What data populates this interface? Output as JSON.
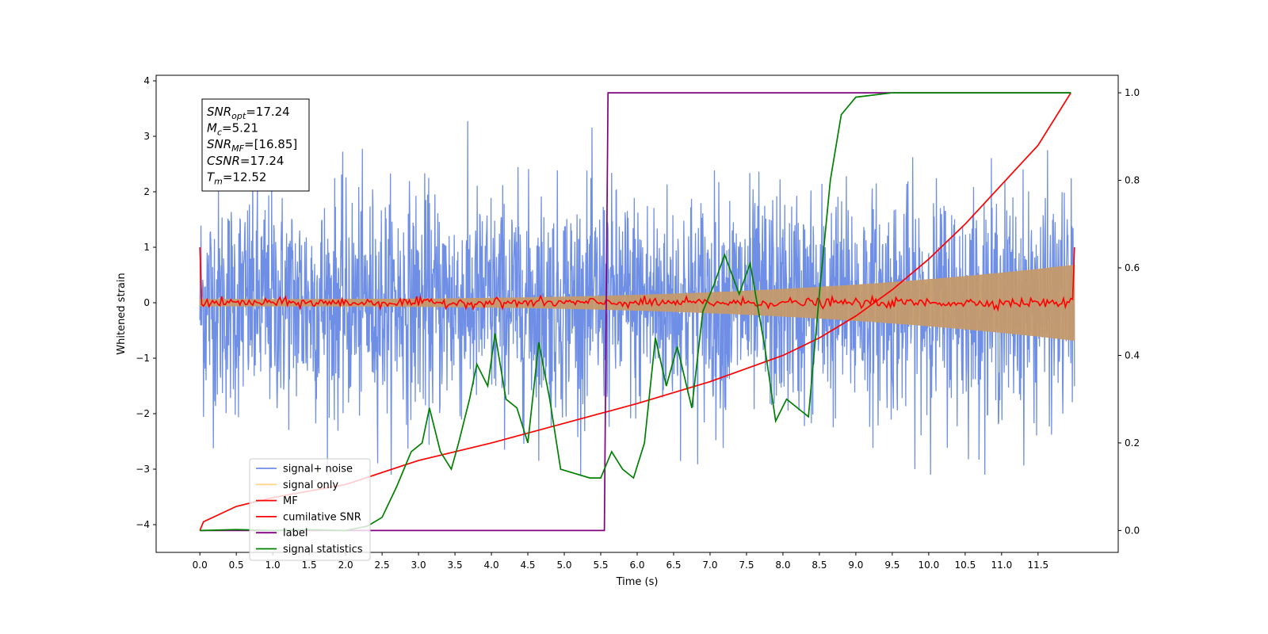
{
  "chart_data": {
    "type": "line",
    "xlabel": "Time (s)",
    "ylabel": "Whitened strain",
    "xlim": [
      -0.6,
      12.6
    ],
    "ylim": [
      -4.5,
      4.1
    ],
    "y2lim": [
      -0.05,
      1.04
    ],
    "x_ticks": [
      0.0,
      0.5,
      1.0,
      1.5,
      2.0,
      2.5,
      3.0,
      3.5,
      4.0,
      4.5,
      5.0,
      5.5,
      6.0,
      6.5,
      7.0,
      7.5,
      8.0,
      8.5,
      9.0,
      9.5,
      10.0,
      10.5,
      11.0,
      11.5
    ],
    "x_tick_labels": [
      "0.0",
      "0.5",
      "1.0",
      "1.5",
      "2.0",
      "2.5",
      "3.0",
      "3.5",
      "4.0",
      "4.5",
      "5.0",
      "5.5",
      "6.0",
      "6.5",
      "7.0",
      "7.5",
      "8.0",
      "8.5",
      "9.0",
      "9.5",
      "10.0",
      "10.5",
      "11.0",
      "11.5"
    ],
    "y_ticks": [
      -4,
      -3,
      -2,
      -1,
      0,
      1,
      2,
      3,
      4
    ],
    "y_tick_labels": [
      "−4",
      "−3",
      "−2",
      "−1",
      "0",
      "1",
      "2",
      "3",
      "4"
    ],
    "y2_ticks": [
      0.0,
      0.2,
      0.4,
      0.6,
      0.8,
      1.0
    ],
    "y2_tick_labels": [
      "0.0",
      "0.2",
      "0.4",
      "0.6",
      "0.8",
      "1.0"
    ],
    "annotation_lines": [
      {
        "sym": "SNR",
        "sub": "opt",
        "value": "=17.24"
      },
      {
        "sym": "M",
        "sub": "c",
        "value": "=5.21"
      },
      {
        "sym": "SNR",
        "sub": "MF",
        "value": "=[16.85]"
      },
      {
        "sym": "CSNR",
        "sub": "",
        "value": "=17.24"
      },
      {
        "sym": "T",
        "sub": "m",
        "value": "=12.52"
      }
    ],
    "legend_position": "lower-left",
    "series": [
      {
        "name": "signal+ noise",
        "axis": "left",
        "color": "#6f8fe6",
        "style": "noise",
        "duration": 12.0,
        "amplitude_envelope": [
          -3.1,
          3.4
        ]
      },
      {
        "name": "signal only",
        "axis": "left",
        "color": "#c49a6c",
        "style": "chirp_envelope",
        "amplitude_start": 0.06,
        "amplitude_end": 0.68
      },
      {
        "name": "MF",
        "axis": "left",
        "color": "#ff0000",
        "style": "flat_noise",
        "level": 0.0,
        "spread": 0.07,
        "edge_value": 1.0
      },
      {
        "name": "cumilative SNR",
        "axis": "right",
        "color": "#ff0000",
        "x": [
          0.0,
          0.05,
          0.5,
          1.0,
          2.0,
          3.0,
          4.0,
          5.0,
          6.0,
          7.0,
          8.0,
          8.5,
          9.0,
          9.5,
          10.0,
          10.5,
          11.0,
          11.5,
          11.95
        ],
        "values": [
          0.0,
          0.02,
          0.055,
          0.075,
          0.105,
          0.16,
          0.2,
          0.245,
          0.29,
          0.34,
          0.4,
          0.44,
          0.49,
          0.55,
          0.62,
          0.7,
          0.79,
          0.88,
          1.0
        ]
      },
      {
        "name": "label",
        "axis": "right",
        "color": "#800080",
        "x": [
          0.0,
          5.55,
          5.6,
          11.95
        ],
        "values": [
          0.0,
          0.0,
          1.0,
          1.0
        ]
      },
      {
        "name": "signal statistics",
        "axis": "right",
        "color": "#008000",
        "x": [
          0.0,
          0.5,
          1.0,
          1.5,
          2.0,
          2.3,
          2.5,
          2.7,
          2.9,
          3.05,
          3.15,
          3.3,
          3.45,
          3.55,
          3.7,
          3.8,
          3.95,
          4.05,
          4.2,
          4.35,
          4.5,
          4.65,
          4.8,
          4.95,
          5.15,
          5.35,
          5.5,
          5.65,
          5.8,
          5.95,
          6.1,
          6.25,
          6.4,
          6.55,
          6.75,
          6.9,
          7.05,
          7.2,
          7.4,
          7.55,
          7.75,
          7.9,
          8.05,
          8.2,
          8.35,
          8.5,
          8.65,
          8.8,
          9.0,
          9.5,
          10.0,
          10.5,
          11.0,
          11.95
        ],
        "values": [
          0.0,
          0.002,
          0.0,
          0.002,
          0.0,
          0.01,
          0.03,
          0.1,
          0.18,
          0.2,
          0.28,
          0.18,
          0.14,
          0.2,
          0.3,
          0.38,
          0.33,
          0.45,
          0.3,
          0.28,
          0.2,
          0.43,
          0.3,
          0.14,
          0.13,
          0.12,
          0.12,
          0.18,
          0.14,
          0.12,
          0.2,
          0.44,
          0.33,
          0.42,
          0.28,
          0.5,
          0.56,
          0.63,
          0.54,
          0.61,
          0.42,
          0.25,
          0.3,
          0.28,
          0.26,
          0.54,
          0.8,
          0.95,
          0.99,
          1.0,
          1.0,
          1.0,
          1.0,
          1.0
        ]
      }
    ]
  }
}
